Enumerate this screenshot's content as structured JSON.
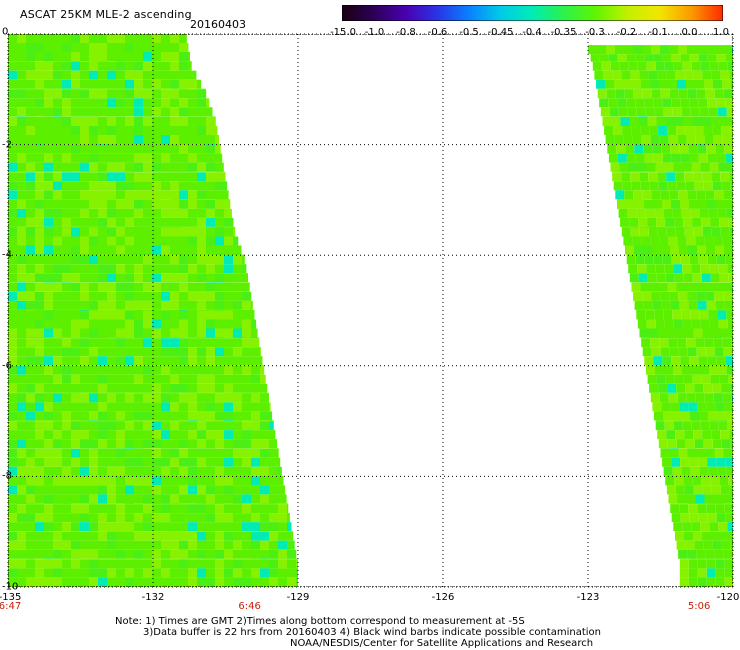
{
  "header": {
    "title": "ASCAT 25KM MLE-2 ascending",
    "date": "20160403"
  },
  "colorbar": {
    "labels": [
      "-15.0",
      "-1.0",
      "-0.8",
      "-0.6",
      "-0.5",
      "-0.45",
      "-0.4",
      "-0.35",
      "-0.3",
      "-0.2",
      "-0.1",
      "0.0",
      "1.0"
    ],
    "colors": [
      "#1a0010",
      "#2c0057",
      "#4a00b0",
      "#2a33e6",
      "#0a80ff",
      "#00cbe8",
      "#00ecb4",
      "#2df24a",
      "#60f500",
      "#c2f000",
      "#f2e600",
      "#fb9a00",
      "#ff2a00"
    ]
  },
  "map": {
    "lon_ticks": [
      "-135",
      "-132",
      "-129",
      "-126",
      "-123",
      "-120"
    ],
    "lat_ticks": [
      "0",
      "-2",
      "-4",
      "-6",
      "-8",
      "-10"
    ],
    "lon_range": [
      -135,
      -120
    ],
    "lat_range": [
      -10,
      0
    ],
    "swaths": [
      {
        "name": "west",
        "edges": [
          [
            0,
            -135.0,
            -131.3
          ],
          [
            -0.5,
            -135.0,
            -131.2
          ],
          [
            -1.0,
            -135.0,
            -130.9
          ],
          [
            -1.5,
            -135.0,
            -130.7
          ],
          [
            -2.0,
            -135.0,
            -130.6
          ],
          [
            -2.5,
            -135.0,
            -130.5
          ],
          [
            -3.0,
            -135.0,
            -130.4
          ],
          [
            -3.5,
            -135.0,
            -130.3
          ],
          [
            -4.0,
            -135.0,
            -130.1
          ],
          [
            -4.5,
            -135.0,
            -130.0
          ],
          [
            -5.0,
            -135.0,
            -129.9
          ],
          [
            -5.5,
            -135.0,
            -129.8
          ],
          [
            -6.0,
            -135.0,
            -129.7
          ],
          [
            -6.5,
            -135.0,
            -129.6
          ],
          [
            -7.0,
            -135.0,
            -129.5
          ],
          [
            -7.5,
            -135.0,
            -129.4
          ],
          [
            -8.0,
            -135.0,
            -129.3
          ],
          [
            -8.5,
            -135.0,
            -129.2
          ],
          [
            -9.0,
            -135.0,
            -129.1
          ],
          [
            -9.5,
            -135.0,
            -129.0
          ],
          [
            -10.0,
            -135.0,
            -129.0
          ]
        ]
      },
      {
        "name": "east",
        "edges": [
          [
            -0.2,
            -123.0,
            -120.0
          ],
          [
            -0.5,
            -122.9,
            -120.0
          ],
          [
            -1.0,
            -122.8,
            -120.0
          ],
          [
            -1.5,
            -122.7,
            -120.0
          ],
          [
            -2.0,
            -122.6,
            -120.0
          ],
          [
            -2.5,
            -122.5,
            -120.0
          ],
          [
            -3.0,
            -122.4,
            -120.0
          ],
          [
            -3.5,
            -122.3,
            -120.0
          ],
          [
            -4.0,
            -122.2,
            -120.0
          ],
          [
            -4.5,
            -122.1,
            -120.0
          ],
          [
            -5.0,
            -122.0,
            -120.0
          ],
          [
            -5.5,
            -121.9,
            -120.0
          ],
          [
            -6.0,
            -121.8,
            -120.0
          ],
          [
            -6.5,
            -121.7,
            -120.0
          ],
          [
            -7.0,
            -121.6,
            -120.0
          ],
          [
            -7.5,
            -121.5,
            -120.0
          ],
          [
            -8.0,
            -121.4,
            -120.0
          ],
          [
            -8.5,
            -121.3,
            -120.0
          ],
          [
            -9.0,
            -121.2,
            -120.0
          ],
          [
            -9.5,
            -121.1,
            -120.0
          ],
          [
            -10.0,
            -121.1,
            -120.0
          ]
        ]
      }
    ],
    "times": [
      {
        "label": "6:47",
        "lon": -135.0
      },
      {
        "label": "6:46",
        "lon": -130.0
      },
      {
        "label": "5:06",
        "lon": -120.7
      }
    ],
    "colors": {
      "green": "#5cf000",
      "lime": "#86f200",
      "cyan": "#00ecb4",
      "grid": "#000000"
    }
  },
  "notes": [
    "Note: 1) Times are GMT 2)Times along bottom correspond to measurement at -5S",
    "3)Data buffer is 22 hrs from 20160403 4) Black wind barbs indicate possible contamination",
    "NOAA/NESDIS/Center for Satellite Applications and Research"
  ]
}
